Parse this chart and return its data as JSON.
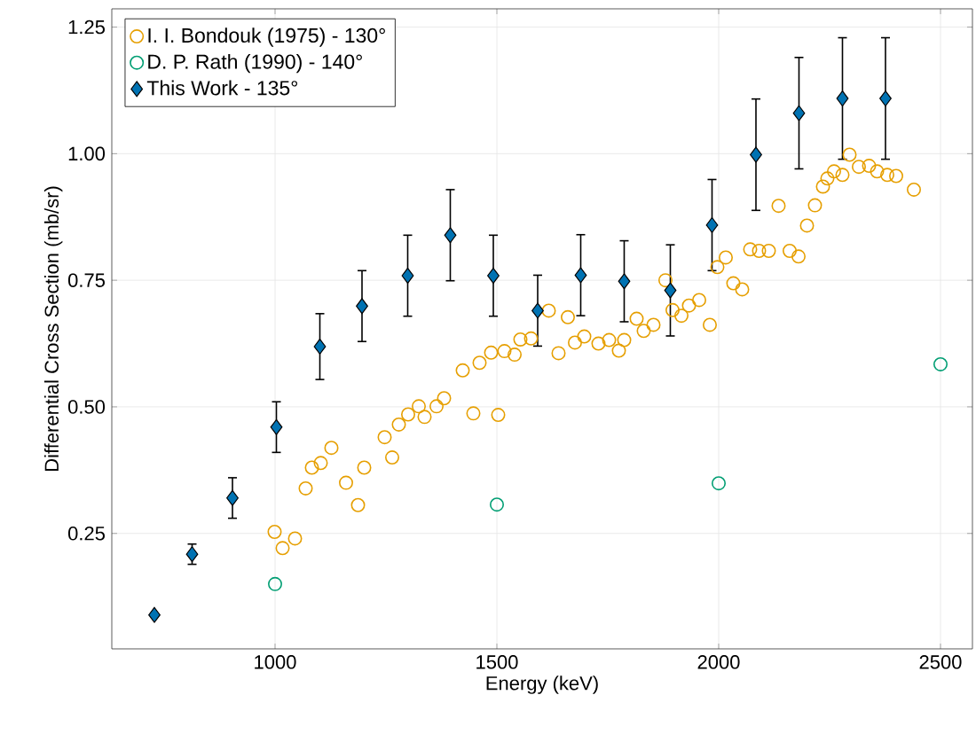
{
  "chart_data": {
    "type": "scatter",
    "xlabel": "Energy (keV)",
    "ylabel": "Differential Cross Section (mb/sr)",
    "xlim": [
      632,
      2572
    ],
    "ylim": [
      0.022,
      1.286
    ],
    "xticks": [
      1000,
      1500,
      2000,
      2500
    ],
    "yticks": [
      {
        "value": 0.25,
        "label": "0.25"
      },
      {
        "value": 0.5,
        "label": "0.50"
      },
      {
        "value": 0.75,
        "label": "0.75"
      },
      {
        "value": 1.0,
        "label": "1.00"
      },
      {
        "value": 1.25,
        "label": "1.25"
      }
    ],
    "grid": true,
    "legend": "top left",
    "series": [
      {
        "name": "I. I. Bondouk (1975) - 130°",
        "color": "#e69f00",
        "marker": "circle",
        "x": [
          999,
          1017,
          1045,
          1069,
          1083,
          1103,
          1127,
          1160,
          1187,
          1201,
          1247,
          1264,
          1279,
          1300,
          1324,
          1337,
          1364,
          1381,
          1423,
          1447,
          1461,
          1487,
          1503,
          1517,
          1540,
          1553,
          1577,
          1617,
          1639,
          1660,
          1676,
          1697,
          1729,
          1753,
          1775,
          1787,
          1815,
          1831,
          1853,
          1880,
          1896,
          1916,
          1933,
          1956,
          1980,
          1997,
          2016,
          2033,
          2053,
          2071,
          2091,
          2113,
          2135,
          2160,
          2180,
          2199,
          2217,
          2235,
          2245,
          2260,
          2279,
          2295,
          2316,
          2339,
          2357,
          2380,
          2400,
          2440
        ],
        "values": [
          0.253,
          0.221,
          0.24,
          0.339,
          0.38,
          0.389,
          0.419,
          0.35,
          0.306,
          0.38,
          0.44,
          0.4,
          0.465,
          0.485,
          0.501,
          0.48,
          0.501,
          0.517,
          0.572,
          0.487,
          0.587,
          0.607,
          0.484,
          0.61,
          0.603,
          0.633,
          0.635,
          0.69,
          0.606,
          0.677,
          0.627,
          0.639,
          0.625,
          0.632,
          0.611,
          0.632,
          0.674,
          0.65,
          0.662,
          0.75,
          0.691,
          0.68,
          0.7,
          0.711,
          0.662,
          0.776,
          0.795,
          0.744,
          0.732,
          0.811,
          0.808,
          0.808,
          0.897,
          0.808,
          0.797,
          0.858,
          0.898,
          0.935,
          0.951,
          0.965,
          0.958,
          0.998,
          0.974,
          0.976,
          0.965,
          0.958,
          0.956,
          0.929
        ]
      },
      {
        "name": "D. P. Rath (1990) - 140°",
        "color": "#009e73",
        "marker": "circle",
        "x": [
          1000,
          1500,
          2000,
          2500
        ],
        "values": [
          0.15,
          0.307,
          0.349,
          0.584
        ]
      },
      {
        "name": "This Work - 135°",
        "color": "#0072b2",
        "marker": "diamond",
        "x": [
          728,
          813,
          904,
          1003,
          1101,
          1196,
          1299,
          1395,
          1492,
          1592,
          1689,
          1787,
          1891,
          1985,
          2084,
          2181,
          2279,
          2376
        ],
        "values": [
          0.089,
          0.209,
          0.32,
          0.46,
          0.619,
          0.699,
          0.759,
          0.839,
          0.759,
          0.69,
          0.76,
          0.748,
          0.73,
          0.859,
          0.998,
          1.08,
          1.109,
          1.109
        ],
        "errors": [
          null,
          0.02,
          0.04,
          0.05,
          0.065,
          0.07,
          0.08,
          0.09,
          0.08,
          0.07,
          0.08,
          0.08,
          0.09,
          0.09,
          0.11,
          0.11,
          0.12,
          0.12
        ]
      }
    ]
  }
}
